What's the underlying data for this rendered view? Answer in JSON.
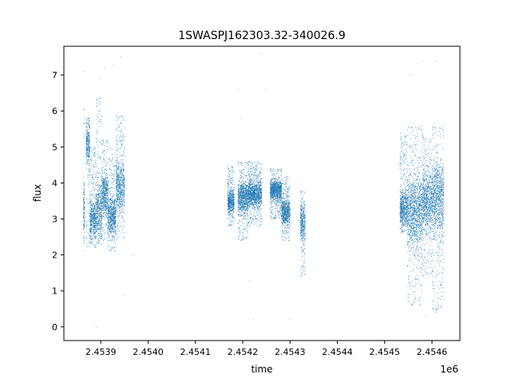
{
  "chart_data": {
    "type": "scatter",
    "title": "1SWASPJ162303.32-340026.9",
    "xlabel": "time",
    "ylabel": "flux",
    "x_offset_label": "1e6",
    "xlim": [
      2453822,
      2454659
    ],
    "ylim": [
      -0.38,
      7.8
    ],
    "x_ticks": [
      2.4539,
      2.454,
      2.4541,
      2.4542,
      2.4543,
      2.4544,
      2.4545,
      2.4546
    ],
    "x_tick_labels": [
      "2.4539",
      "2.4540",
      "2.4541",
      "2.4542",
      "2.4543",
      "2.4544",
      "2.4545",
      "2.4546"
    ],
    "y_ticks": [
      0,
      1,
      2,
      3,
      4,
      5,
      6,
      7
    ],
    "y_tick_labels": [
      "0",
      "1",
      "2",
      "3",
      "4",
      "5",
      "6",
      "7"
    ],
    "grid": false,
    "legend": "none",
    "marker_color": "#1f77b4",
    "segments": [
      {
        "x": [
          2453863,
          2453866
        ],
        "flux_range": [
          2.0,
          6.2
        ],
        "level": 3.2
      },
      {
        "x": [
          2453869,
          2453877
        ],
        "flux_range": [
          2.2,
          5.8
        ],
        "level": 5.1
      },
      {
        "x": [
          2453877,
          2453890
        ],
        "flux_range": [
          2.2,
          5.0
        ],
        "level": 3.0
      },
      {
        "x": [
          2453890,
          2453902
        ],
        "flux_range": [
          2.3,
          6.4
        ],
        "level": 3.2
      },
      {
        "x": [
          2453902,
          2453915
        ],
        "flux_range": [
          2.4,
          5.2
        ],
        "level": 3.7
      },
      {
        "x": [
          2453915,
          2453932
        ],
        "flux_range": [
          2.1,
          5.0
        ],
        "level": 3.1
      },
      {
        "x": [
          2453932,
          2453950
        ],
        "flux_range": [
          2.4,
          5.9
        ],
        "level": 3.9
      },
      {
        "x": [
          2454168,
          2454182
        ],
        "flux_range": [
          2.8,
          4.5
        ],
        "level": 3.5
      },
      {
        "x": [
          2454190,
          2454212
        ],
        "flux_range": [
          2.4,
          4.6
        ],
        "level": 3.6
      },
      {
        "x": [
          2454212,
          2454240
        ],
        "flux_range": [
          2.8,
          4.6
        ],
        "level": 3.7
      },
      {
        "x": [
          2454258,
          2454282
        ],
        "flux_range": [
          3.0,
          4.4
        ],
        "level": 3.8
      },
      {
        "x": [
          2454282,
          2454300
        ],
        "flux_range": [
          2.4,
          4.2
        ],
        "level": 3.2
      },
      {
        "x": [
          2454322,
          2454332
        ],
        "flux_range": [
          1.4,
          3.8
        ],
        "level": 2.9
      },
      {
        "x": [
          2454532,
          2454548
        ],
        "flux_range": [
          2.6,
          5.4
        ],
        "level": 3.3
      },
      {
        "x": [
          2454548,
          2454580
        ],
        "flux_range": [
          0.6,
          5.6
        ],
        "level": 3.2
      },
      {
        "x": [
          2454580,
          2454600
        ],
        "flux_range": [
          1.4,
          5.3
        ],
        "level": 3.5
      },
      {
        "x": [
          2454600,
          2454625
        ],
        "flux_range": [
          0.4,
          5.6
        ],
        "level": 3.6
      }
    ],
    "outliers": [
      {
        "x": 2453865,
        "y": 7.1
      },
      {
        "x": 2453890,
        "y": 0.0
      },
      {
        "x": 2453898,
        "y": 6.9
      },
      {
        "x": 2453908,
        "y": 7.2
      },
      {
        "x": 2453928,
        "y": 7.3
      },
      {
        "x": 2453942,
        "y": 7.5
      },
      {
        "x": 2453948,
        "y": 0.9
      },
      {
        "x": 2453968,
        "y": 2.0
      },
      {
        "x": 2454190,
        "y": 6.6
      },
      {
        "x": 2454195,
        "y": 5.8
      },
      {
        "x": 2454215,
        "y": 1.3
      },
      {
        "x": 2454222,
        "y": 0.2
      },
      {
        "x": 2454238,
        "y": 7.6
      },
      {
        "x": 2454250,
        "y": 6.6
      },
      {
        "x": 2454300,
        "y": 0.2
      },
      {
        "x": 2454556,
        "y": 7.0
      },
      {
        "x": 2454578,
        "y": 7.4
      },
      {
        "x": 2454588,
        "y": 0.3
      },
      {
        "x": 2454608,
        "y": 7.4
      },
      {
        "x": 2454615,
        "y": 0.5
      },
      {
        "x": 2454620,
        "y": 1.1
      }
    ]
  }
}
